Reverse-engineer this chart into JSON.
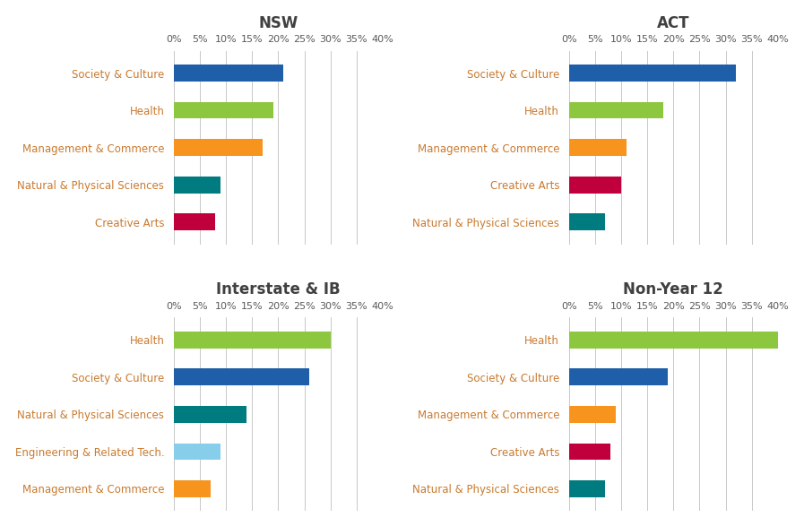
{
  "subplots": [
    {
      "title": "NSW",
      "categories": [
        "Society & Culture",
        "Health",
        "Management & Commerce",
        "Natural & Physical Sciences",
        "Creative Arts"
      ],
      "values": [
        21,
        19,
        17,
        9,
        8
      ],
      "colors": [
        "#1f5ea8",
        "#8dc63f",
        "#f7941d",
        "#007b7f",
        "#c0003c"
      ]
    },
    {
      "title": "ACT",
      "categories": [
        "Society & Culture",
        "Health",
        "Management & Commerce",
        "Creative Arts",
        "Natural & Physical Sciences"
      ],
      "values": [
        32,
        18,
        11,
        10,
        7
      ],
      "colors": [
        "#1f5ea8",
        "#8dc63f",
        "#f7941d",
        "#c0003c",
        "#007b7f"
      ]
    },
    {
      "title": "Interstate & IB",
      "categories": [
        "Health",
        "Society & Culture",
        "Natural & Physical Sciences",
        "Engineering & Related Tech.",
        "Management & Commerce"
      ],
      "values": [
        30,
        26,
        14,
        9,
        7
      ],
      "colors": [
        "#8dc63f",
        "#1f5ea8",
        "#007b7f",
        "#87ceeb",
        "#f7941d"
      ]
    },
    {
      "title": "Non-Year 12",
      "categories": [
        "Health",
        "Society & Culture",
        "Management & Commerce",
        "Creative Arts",
        "Natural & Physical Sciences"
      ],
      "values": [
        40,
        19,
        9,
        8,
        7
      ],
      "colors": [
        "#8dc63f",
        "#1f5ea8",
        "#f7941d",
        "#c0003c",
        "#007b7f"
      ]
    }
  ],
  "xlim": [
    0,
    40
  ],
  "xticks": [
    0,
    5,
    10,
    15,
    20,
    25,
    30,
    35,
    40
  ],
  "xtick_labels": [
    "0%",
    "5%",
    "10%",
    "15%",
    "20%",
    "25%",
    "30%",
    "35%",
    "40%"
  ],
  "title_color": "#404040",
  "label_color": "#c97a30",
  "bar_height": 0.45,
  "grid_color": "#c8c8c8",
  "title_fontsize": 12,
  "tick_fontsize": 8,
  "label_fontsize": 8.5
}
